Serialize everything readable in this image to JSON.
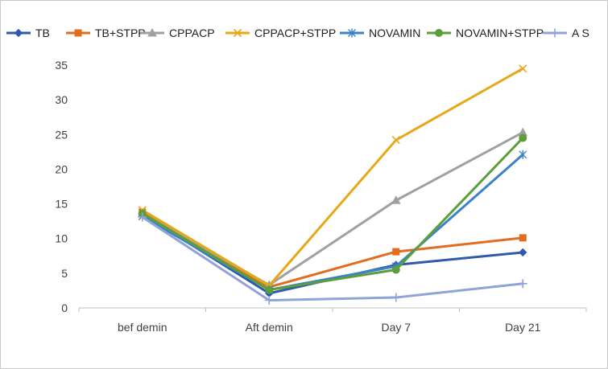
{
  "chart_data": {
    "type": "line",
    "categories": [
      "bef demin",
      "Aft demin",
      "Day 7",
      "Day 21"
    ],
    "ylim": [
      0,
      35
    ],
    "yticks": [
      0,
      5,
      10,
      15,
      20,
      25,
      30,
      35
    ],
    "grid": false,
    "legend_position": "top",
    "series": [
      {
        "name": "TB",
        "color": "#2E5AAC",
        "marker": "diamond",
        "values": [
          13.5,
          2.1,
          6.2,
          8.0
        ]
      },
      {
        "name": "TB+STPP",
        "color": "#E46C1E",
        "marker": "square",
        "values": [
          13.8,
          3.0,
          8.1,
          10.1
        ]
      },
      {
        "name": "CPPACP",
        "color": "#A0A0A0",
        "marker": "triangle",
        "values": [
          13.6,
          3.3,
          15.5,
          25.3
        ]
      },
      {
        "name": "CPPACP+STPP",
        "color": "#E6A817",
        "marker": "x",
        "values": [
          14.1,
          3.2,
          24.2,
          34.5
        ]
      },
      {
        "name": "NOVAMIN",
        "color": "#3C82C6",
        "marker": "star",
        "values": [
          13.2,
          2.6,
          6.0,
          22.1
        ]
      },
      {
        "name": "NOVAMIN+STPP",
        "color": "#5B9E3A",
        "marker": "circle",
        "values": [
          13.6,
          2.6,
          5.5,
          24.5
        ]
      },
      {
        "name": "A S",
        "color": "#8FA3D8",
        "marker": "plus",
        "values": [
          13.1,
          1.1,
          1.5,
          3.5
        ]
      }
    ]
  }
}
